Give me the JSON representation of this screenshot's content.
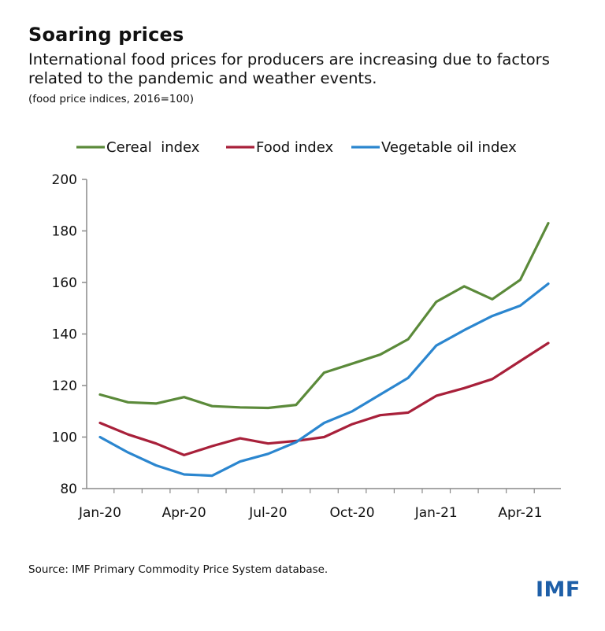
{
  "header": {
    "title": "Soaring prices",
    "subtitle": "International food prices for producers are increasing due to factors related to the pandemic and weather events.",
    "note": "(food price indices, 2016=100)"
  },
  "footer": {
    "source": "Source: IMF Primary Commodity Price System database.",
    "logo": "IMF"
  },
  "chart_data": {
    "type": "line",
    "x": [
      "Jan-20",
      "Feb-20",
      "Mar-20",
      "Apr-20",
      "May-20",
      "Jun-20",
      "Jul-20",
      "Aug-20",
      "Sep-20",
      "Oct-20",
      "Nov-20",
      "Dec-20",
      "Jan-21",
      "Feb-21",
      "Mar-21",
      "Apr-21",
      "May-21"
    ],
    "x_tick_labels": [
      "Jan-20",
      "Apr-20",
      "Jul-20",
      "Oct-20",
      "Jan-21",
      "Apr-21"
    ],
    "x_tick_indices": [
      0,
      3,
      6,
      9,
      12,
      15
    ],
    "ylim": [
      80,
      200
    ],
    "y_ticks": [
      80,
      100,
      120,
      140,
      160,
      180,
      200
    ],
    "grid": false,
    "legend_placement": "top",
    "series": [
      {
        "name": "Cereal  index",
        "color": "#5B8A3A",
        "values": [
          116.5,
          113.5,
          113,
          115.5,
          112,
          111.5,
          111.3,
          112.5,
          125,
          128.5,
          132,
          138,
          152.5,
          158.5,
          153.5,
          161,
          183
        ]
      },
      {
        "name": "Food index",
        "color": "#A8203A",
        "values": [
          105.5,
          101,
          97.5,
          93,
          96.5,
          99.5,
          97.5,
          98.5,
          100,
          105,
          108.5,
          109.5,
          116,
          119,
          122.5,
          129.5,
          136.5
        ]
      },
      {
        "name": "Vegetable oil index",
        "color": "#2B86CF",
        "values": [
          100,
          94,
          89,
          85.5,
          85,
          90.5,
          93.5,
          98,
          105.5,
          110,
          116.5,
          123,
          135.5,
          141.5,
          147,
          151,
          159.5
        ]
      }
    ]
  }
}
